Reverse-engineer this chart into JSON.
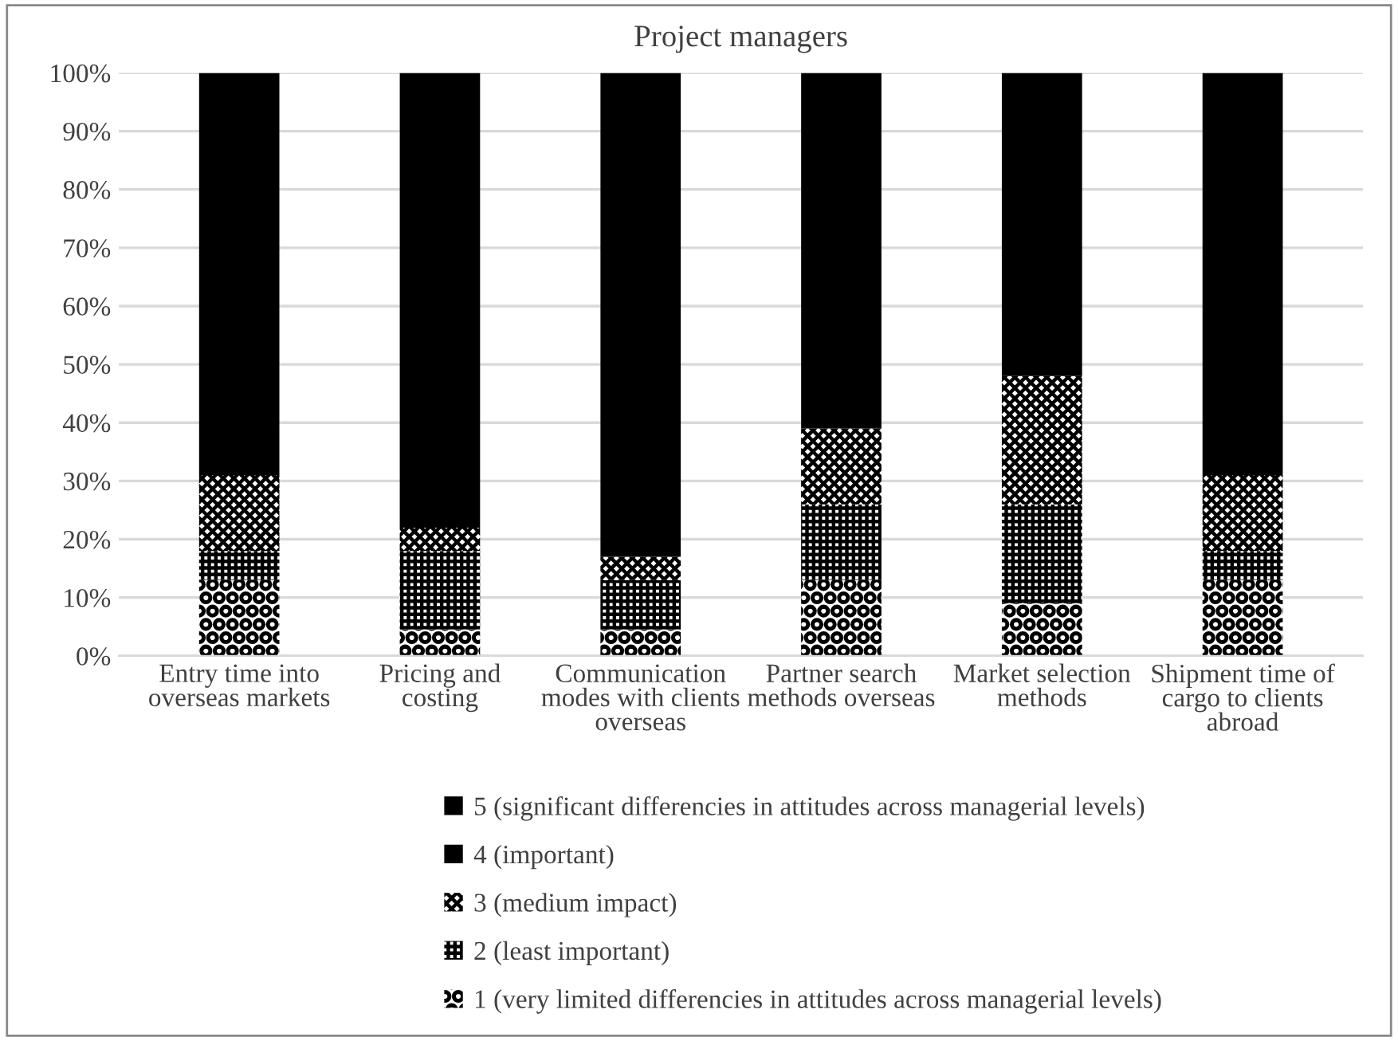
{
  "chart_data": {
    "type": "bar",
    "title": "Project managers",
    "stacked": true,
    "categories": [
      "Entry time into overseas markets",
      "Pricing and costing",
      "Communication modes with clients overseas",
      "Partner search methods overseas",
      "Market selection methods",
      "Shipment time of cargo to clients abroad"
    ],
    "series": [
      {
        "name": "1 (very limited differencies in attitudes across managerial levels)",
        "color": "#000000",
        "values": [
          13,
          4.5,
          4.5,
          13,
          9,
          13
        ]
      },
      {
        "name": "2 (least important)",
        "color": "#000000",
        "values": [
          5,
          13.5,
          8.5,
          13,
          17,
          5
        ]
      },
      {
        "name": "3 (medium impact)",
        "color": "#000000",
        "values": [
          13,
          4,
          4,
          13,
          22,
          13
        ]
      },
      {
        "name": "4 (important)",
        "color": "#000000",
        "values": [
          null,
          null,
          null,
          null,
          null,
          null
        ]
      },
      {
        "name": "5 (significant differencies in attitudes across managerial levels)",
        "color": "#000000",
        "values": [
          69,
          78,
          83,
          61,
          52,
          69
        ]
      }
    ],
    "ylim": [
      0,
      100
    ],
    "yticks": [
      {
        "value": 0,
        "label": "0%"
      },
      {
        "value": 10,
        "label": "10%"
      },
      {
        "value": 20,
        "label": "20%"
      },
      {
        "value": 30,
        "label": "30%"
      },
      {
        "value": 40,
        "label": "40%"
      },
      {
        "value": 50,
        "label": "50%"
      },
      {
        "value": 60,
        "label": "60%"
      },
      {
        "value": 70,
        "label": "70%"
      },
      {
        "value": 80,
        "label": "80%"
      },
      {
        "value": 90,
        "label": "90%"
      },
      {
        "value": 100,
        "label": "100%"
      }
    ],
    "grid": "y",
    "legend": "bottom"
  }
}
